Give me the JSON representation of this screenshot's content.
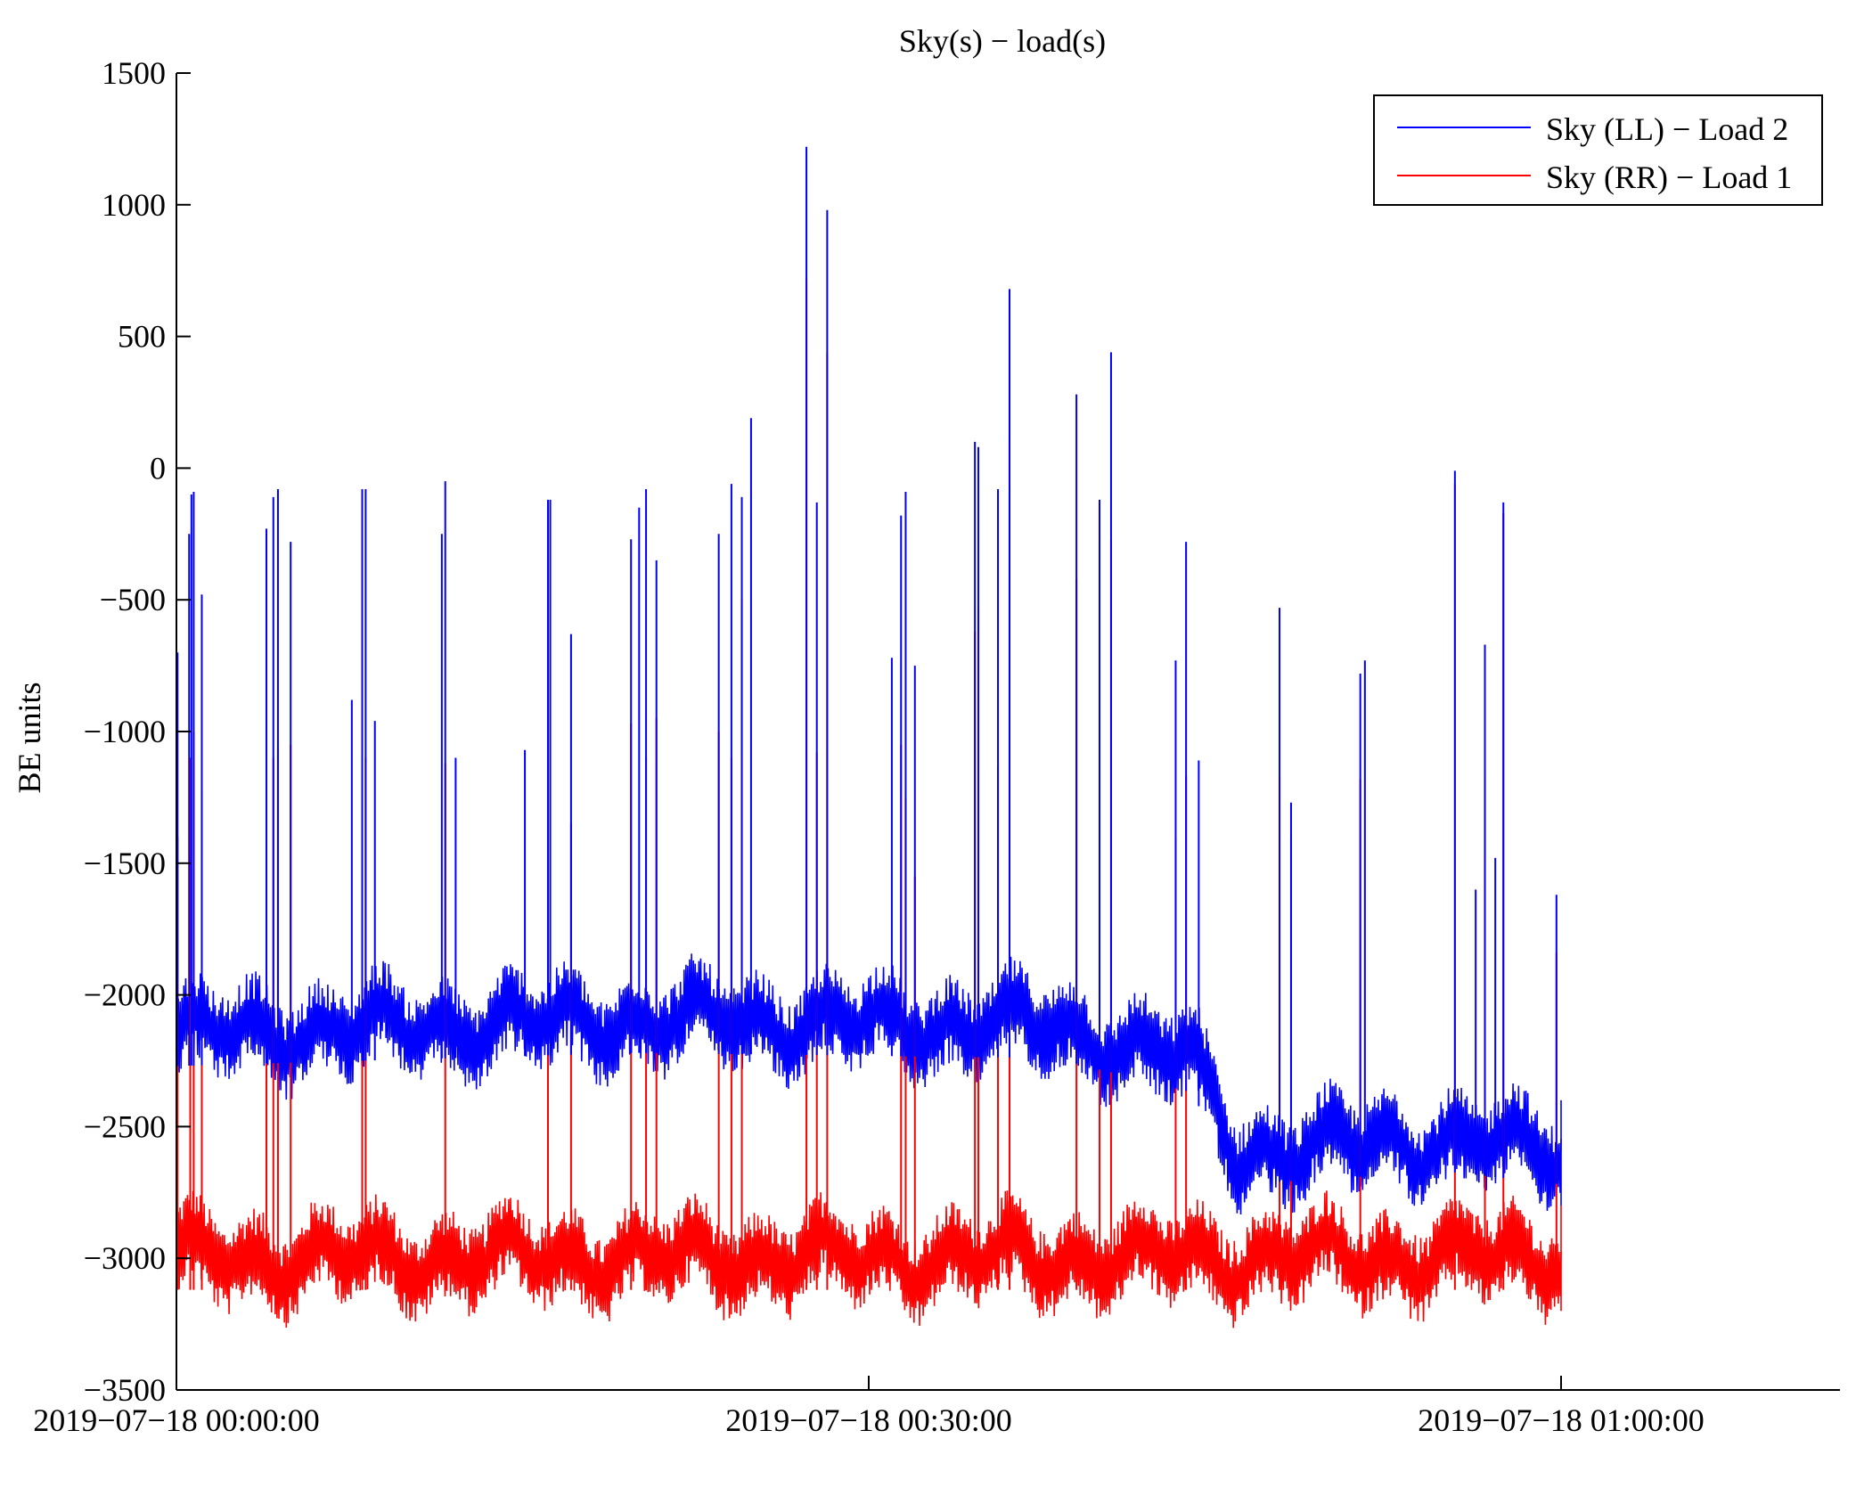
{
  "chart_data": {
    "type": "line",
    "title": "Sky(s) − load(s)",
    "xlabel": "",
    "ylabel": "BE units",
    "ylim": [
      -3500,
      1500
    ],
    "xlim_minutes": [
      0,
      72
    ],
    "yticks": [
      {
        "value": 1500,
        "label": "1500"
      },
      {
        "value": 1000,
        "label": "1000"
      },
      {
        "value": 500,
        "label": "500"
      },
      {
        "value": 0,
        "label": "0"
      },
      {
        "value": -500,
        "label": "−500"
      },
      {
        "value": -1000,
        "label": "−1000"
      },
      {
        "value": -1500,
        "label": "−1500"
      },
      {
        "value": -2000,
        "label": "−2000"
      },
      {
        "value": -2500,
        "label": "−2500"
      },
      {
        "value": -3000,
        "label": "−3000"
      },
      {
        "value": -3500,
        "label": "−3500"
      }
    ],
    "xticks": [
      {
        "minutes": 0,
        "label": "2019−07−18 00:00:00"
      },
      {
        "minutes": 30,
        "label": "2019−07−18 00:30:00"
      },
      {
        "minutes": 60,
        "label": "2019−07−18 01:00:00"
      }
    ],
    "legend_position": "top-right",
    "series": [
      {
        "name": "Sky (LL) − Load 2",
        "color": "#0000ff",
        "approx_profile": [
          {
            "minutes": 0,
            "value": -2150
          },
          {
            "minutes": 20,
            "value": -2100
          },
          {
            "minutes": 38,
            "value": -2120
          },
          {
            "minutes": 44,
            "value": -2250
          },
          {
            "minutes": 46,
            "value": -2600
          },
          {
            "minutes": 55,
            "value": -2550
          },
          {
            "minutes": 60,
            "value": -2600
          }
        ],
        "spikes": [
          {
            "minutes": 0.05,
            "value": -700
          },
          {
            "minutes": 0.55,
            "value": -250
          },
          {
            "minutes": 0.65,
            "value": -100
          },
          {
            "minutes": 0.75,
            "value": -90
          },
          {
            "minutes": 1.1,
            "value": -480
          },
          {
            "minutes": 3.9,
            "value": -230
          },
          {
            "minutes": 4.2,
            "value": -110
          },
          {
            "minutes": 4.4,
            "value": -80
          },
          {
            "minutes": 4.95,
            "value": -280
          },
          {
            "minutes": 7.6,
            "value": -880
          },
          {
            "minutes": 8.05,
            "value": -80
          },
          {
            "minutes": 8.2,
            "value": -80
          },
          {
            "minutes": 8.6,
            "value": -960
          },
          {
            "minutes": 11.5,
            "value": -250
          },
          {
            "minutes": 11.65,
            "value": -50
          },
          {
            "minutes": 12.1,
            "value": -1100
          },
          {
            "minutes": 15.1,
            "value": -1070
          },
          {
            "minutes": 16.1,
            "value": -120
          },
          {
            "minutes": 16.2,
            "value": -120
          },
          {
            "minutes": 17.1,
            "value": -630
          },
          {
            "minutes": 19.7,
            "value": -270
          },
          {
            "minutes": 20.05,
            "value": -150
          },
          {
            "minutes": 20.35,
            "value": -80
          },
          {
            "minutes": 20.8,
            "value": -350
          },
          {
            "minutes": 23.5,
            "value": -250
          },
          {
            "minutes": 24.05,
            "value": -60
          },
          {
            "minutes": 24.5,
            "value": -110
          },
          {
            "minutes": 24.9,
            "value": 190
          },
          {
            "minutes": 27.3,
            "value": 1220
          },
          {
            "minutes": 27.75,
            "value": -130
          },
          {
            "minutes": 28.2,
            "value": 980
          },
          {
            "minutes": 31.0,
            "value": -720
          },
          {
            "minutes": 31.4,
            "value": -180
          },
          {
            "minutes": 31.6,
            "value": -90
          },
          {
            "minutes": 32.0,
            "value": -750
          },
          {
            "minutes": 34.6,
            "value": 100
          },
          {
            "minutes": 34.75,
            "value": 80
          },
          {
            "minutes": 35.6,
            "value": -80
          },
          {
            "minutes": 36.1,
            "value": 680
          },
          {
            "minutes": 39.0,
            "value": 280
          },
          {
            "minutes": 40.0,
            "value": -120
          },
          {
            "minutes": 40.5,
            "value": 440
          },
          {
            "minutes": 43.3,
            "value": -730
          },
          {
            "minutes": 43.75,
            "value": -280
          },
          {
            "minutes": 44.3,
            "value": -1110
          },
          {
            "minutes": 47.8,
            "value": -530
          },
          {
            "minutes": 48.3,
            "value": -1270
          },
          {
            "minutes": 51.3,
            "value": -780
          },
          {
            "minutes": 51.5,
            "value": -730
          },
          {
            "minutes": 55.4,
            "value": -10
          },
          {
            "minutes": 56.3,
            "value": -1600
          },
          {
            "minutes": 56.7,
            "value": -670
          },
          {
            "minutes": 57.15,
            "value": -1480
          },
          {
            "minutes": 57.5,
            "value": -130
          },
          {
            "minutes": 59.8,
            "value": -1620
          }
        ]
      },
      {
        "name": "Sky (RR) − Load 1",
        "color": "#ff0000",
        "approx_profile": [
          {
            "minutes": 0,
            "value": -3000
          },
          {
            "minutes": 30,
            "value": -3000
          },
          {
            "minutes": 60,
            "value": -3000
          }
        ],
        "spikes": [
          {
            "minutes": 0.05,
            "value": -1400
          },
          {
            "minutes": 0.6,
            "value": -1100
          },
          {
            "minutes": 0.75,
            "value": -1000
          },
          {
            "minutes": 1.1,
            "value": -1230
          },
          {
            "minutes": 3.9,
            "value": -970
          },
          {
            "minutes": 4.2,
            "value": -1100
          },
          {
            "minutes": 4.4,
            "value": -1060
          },
          {
            "minutes": 4.95,
            "value": -1050
          },
          {
            "minutes": 8.05,
            "value": -1080
          },
          {
            "minutes": 8.2,
            "value": -1100
          },
          {
            "minutes": 11.65,
            "value": -1120
          },
          {
            "minutes": 16.1,
            "value": -1130
          },
          {
            "minutes": 17.1,
            "value": -1350
          },
          {
            "minutes": 19.7,
            "value": -970
          },
          {
            "minutes": 20.35,
            "value": -1100
          },
          {
            "minutes": 20.8,
            "value": -950
          },
          {
            "minutes": 23.5,
            "value": -1000
          },
          {
            "minutes": 24.05,
            "value": -1100
          },
          {
            "minutes": 24.5,
            "value": -500
          },
          {
            "minutes": 27.3,
            "value": 720
          },
          {
            "minutes": 27.75,
            "value": -1080
          },
          {
            "minutes": 28.2,
            "value": 440
          },
          {
            "minutes": 31.4,
            "value": -1050
          },
          {
            "minutes": 31.6,
            "value": -1250
          },
          {
            "minutes": 32.0,
            "value": -1550
          },
          {
            "minutes": 34.6,
            "value": -620
          },
          {
            "minutes": 34.75,
            "value": -530
          },
          {
            "minutes": 35.6,
            "value": -1130
          },
          {
            "minutes": 36.1,
            "value": 110
          },
          {
            "minutes": 39.0,
            "value": -420
          },
          {
            "minutes": 40.0,
            "value": -1170
          },
          {
            "minutes": 40.5,
            "value": -270
          },
          {
            "minutes": 43.3,
            "value": -1400
          },
          {
            "minutes": 43.75,
            "value": -1170
          },
          {
            "minutes": 47.8,
            "value": -1170
          },
          {
            "minutes": 48.3,
            "value": -1400
          },
          {
            "minutes": 51.3,
            "value": -1180
          },
          {
            "minutes": 55.4,
            "value": -60
          },
          {
            "minutes": 56.7,
            "value": -1150
          },
          {
            "minutes": 57.5,
            "value": -170
          },
          {
            "minutes": 59.8,
            "value": -1840
          }
        ]
      }
    ]
  }
}
